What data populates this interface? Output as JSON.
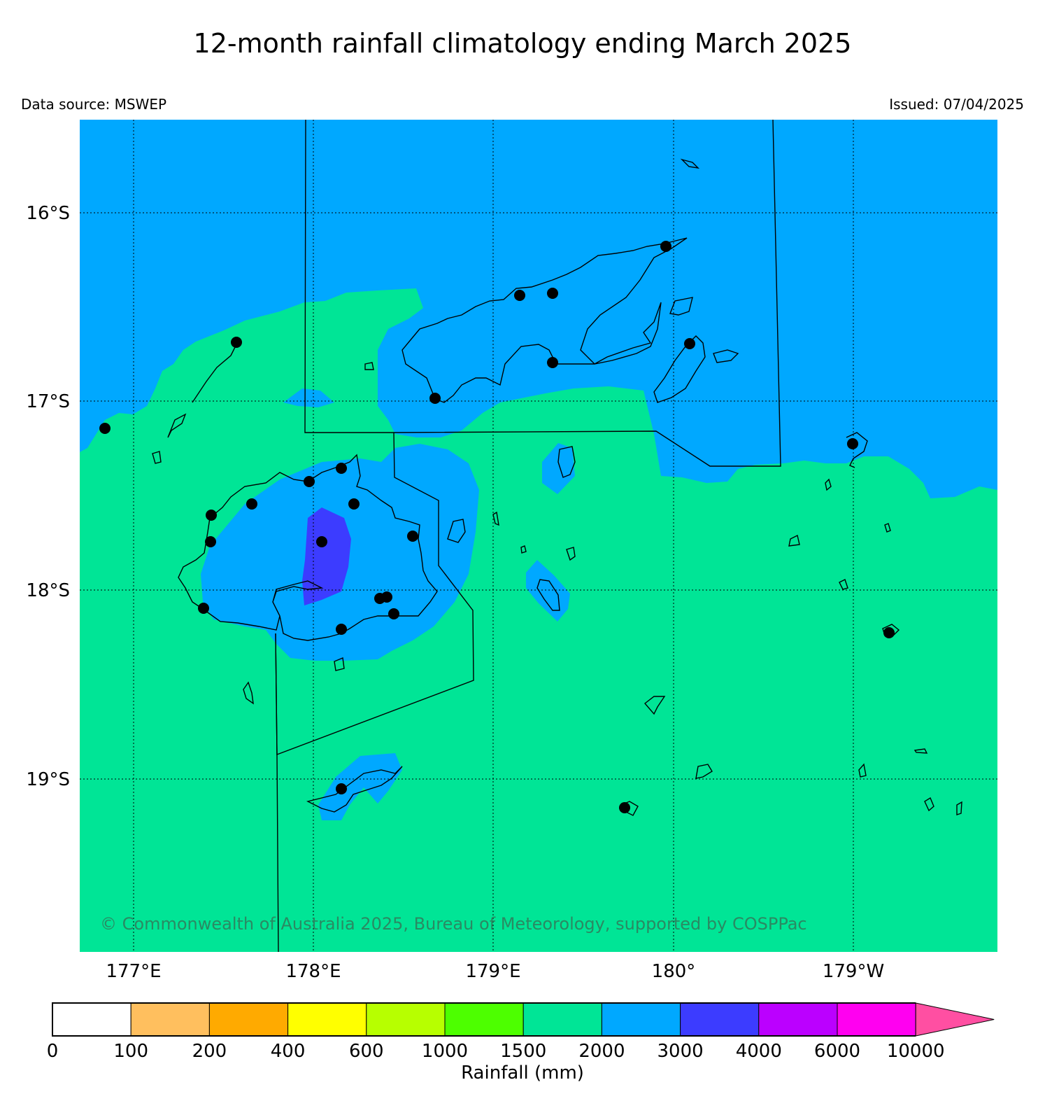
{
  "title": "12-month rainfall climatology ending March 2025",
  "data_source": "Data source: MSWEP",
  "issued": "Issued: 07/04/2025",
  "copyright": "© Commonwealth of Australia 2025, Bureau of Meteorology, supported by COSPPac",
  "map": {
    "lon_labels": [
      "177°E",
      "178°E",
      "179°E",
      "180°",
      "179°W"
    ],
    "lat_labels": [
      "16°S",
      "17°S",
      "18°S",
      "19°S"
    ]
  },
  "colorbar": {
    "label": "Rainfall (mm)",
    "ticks": [
      "0",
      "100",
      "200",
      "400",
      "600",
      "1000",
      "1500",
      "2000",
      "3000",
      "4000",
      "6000",
      "10000"
    ],
    "colors": [
      "#ffffff",
      "#ffbf5e",
      "#ffaa00",
      "#ffff00",
      "#b7ff00",
      "#4dff00",
      "#00e596",
      "#00a8ff",
      "#3c3cff",
      "#bb00ff",
      "#ff00f0",
      "#ff4fa2"
    ]
  },
  "colors": {
    "band_1500_2000": "#00e596",
    "band_2000_3000": "#00a8ff",
    "band_3000_4000": "#3c3cff"
  }
}
